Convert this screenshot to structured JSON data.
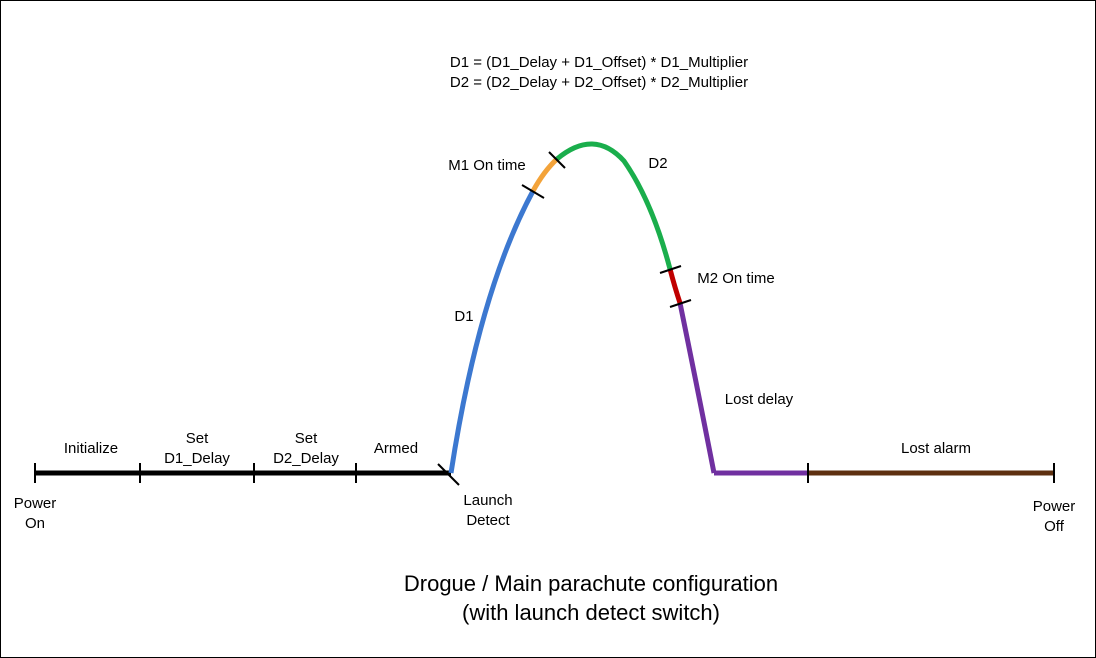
{
  "formulas": {
    "d1": "D1 = (D1_Delay + D1_Offset) * D1_Multiplier",
    "d2": "D2 = (D2_Delay + D2_Offset) * D2_Multiplier"
  },
  "timeline": {
    "power_on": [
      "Power",
      "On"
    ],
    "initialize": "Initialize",
    "set_d1_delay": [
      "Set",
      "D1_Delay"
    ],
    "set_d2_delay": [
      "Set",
      "D2_Delay"
    ],
    "armed": "Armed",
    "launch_detect": [
      "Launch",
      "Detect"
    ],
    "lost_alarm": "Lost alarm",
    "power_off": [
      "Power",
      "Off"
    ]
  },
  "flight": {
    "d1": "D1",
    "m1_on_time": "M1 On time",
    "d2": "D2",
    "m2_on_time": "M2 On time",
    "lost_delay": "Lost delay"
  },
  "title": {
    "line1": "Drogue / Main parachute configuration",
    "line2": "(with launch detect switch)"
  },
  "colors": {
    "timeline": "#000000",
    "d1_segment": "#3c78d0",
    "m1_segment": "#f3a33a",
    "d2_segment": "#1aae4c",
    "m2_segment": "#c00000",
    "lost_delay_segment": "#7030a0",
    "lost_alarm_segment": "#5e3010"
  }
}
